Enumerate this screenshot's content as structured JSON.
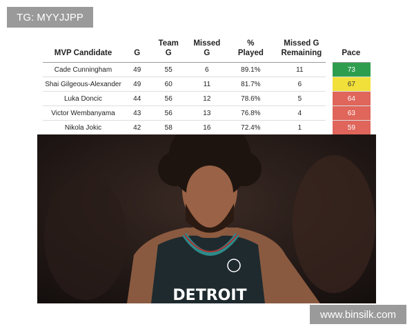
{
  "watermark_top": "TG: MYYJJPP",
  "watermark_bottom": "www.binsilk.com",
  "table": {
    "headers": [
      [
        "MVP Candidate"
      ],
      [
        "G"
      ],
      [
        "Team",
        "G"
      ],
      [
        "Missed",
        "G"
      ],
      [
        "%",
        "Played"
      ],
      [
        "Missed G",
        "Remaining"
      ],
      [
        "Pace"
      ]
    ],
    "rows": [
      [
        "Cade Cunningham",
        "49",
        "55",
        "6",
        "89.1%",
        "11",
        "73"
      ],
      [
        "Shai Gilgeous-Alexander",
        "49",
        "60",
        "11",
        "81.7%",
        "6",
        "67"
      ],
      [
        "Luka Doncic",
        "44",
        "56",
        "12",
        "78.6%",
        "5",
        "64"
      ],
      [
        "Victor Wembanyama",
        "43",
        "56",
        "13",
        "76.8%",
        "4",
        "63"
      ],
      [
        "Nikola Jokic",
        "42",
        "58",
        "16",
        "72.4%",
        "1",
        "59"
      ]
    ],
    "pace_colors": [
      "#2e9e4e",
      "#f2e03a",
      "#e0655a",
      "#e0655a",
      "#e0655a"
    ]
  }
}
